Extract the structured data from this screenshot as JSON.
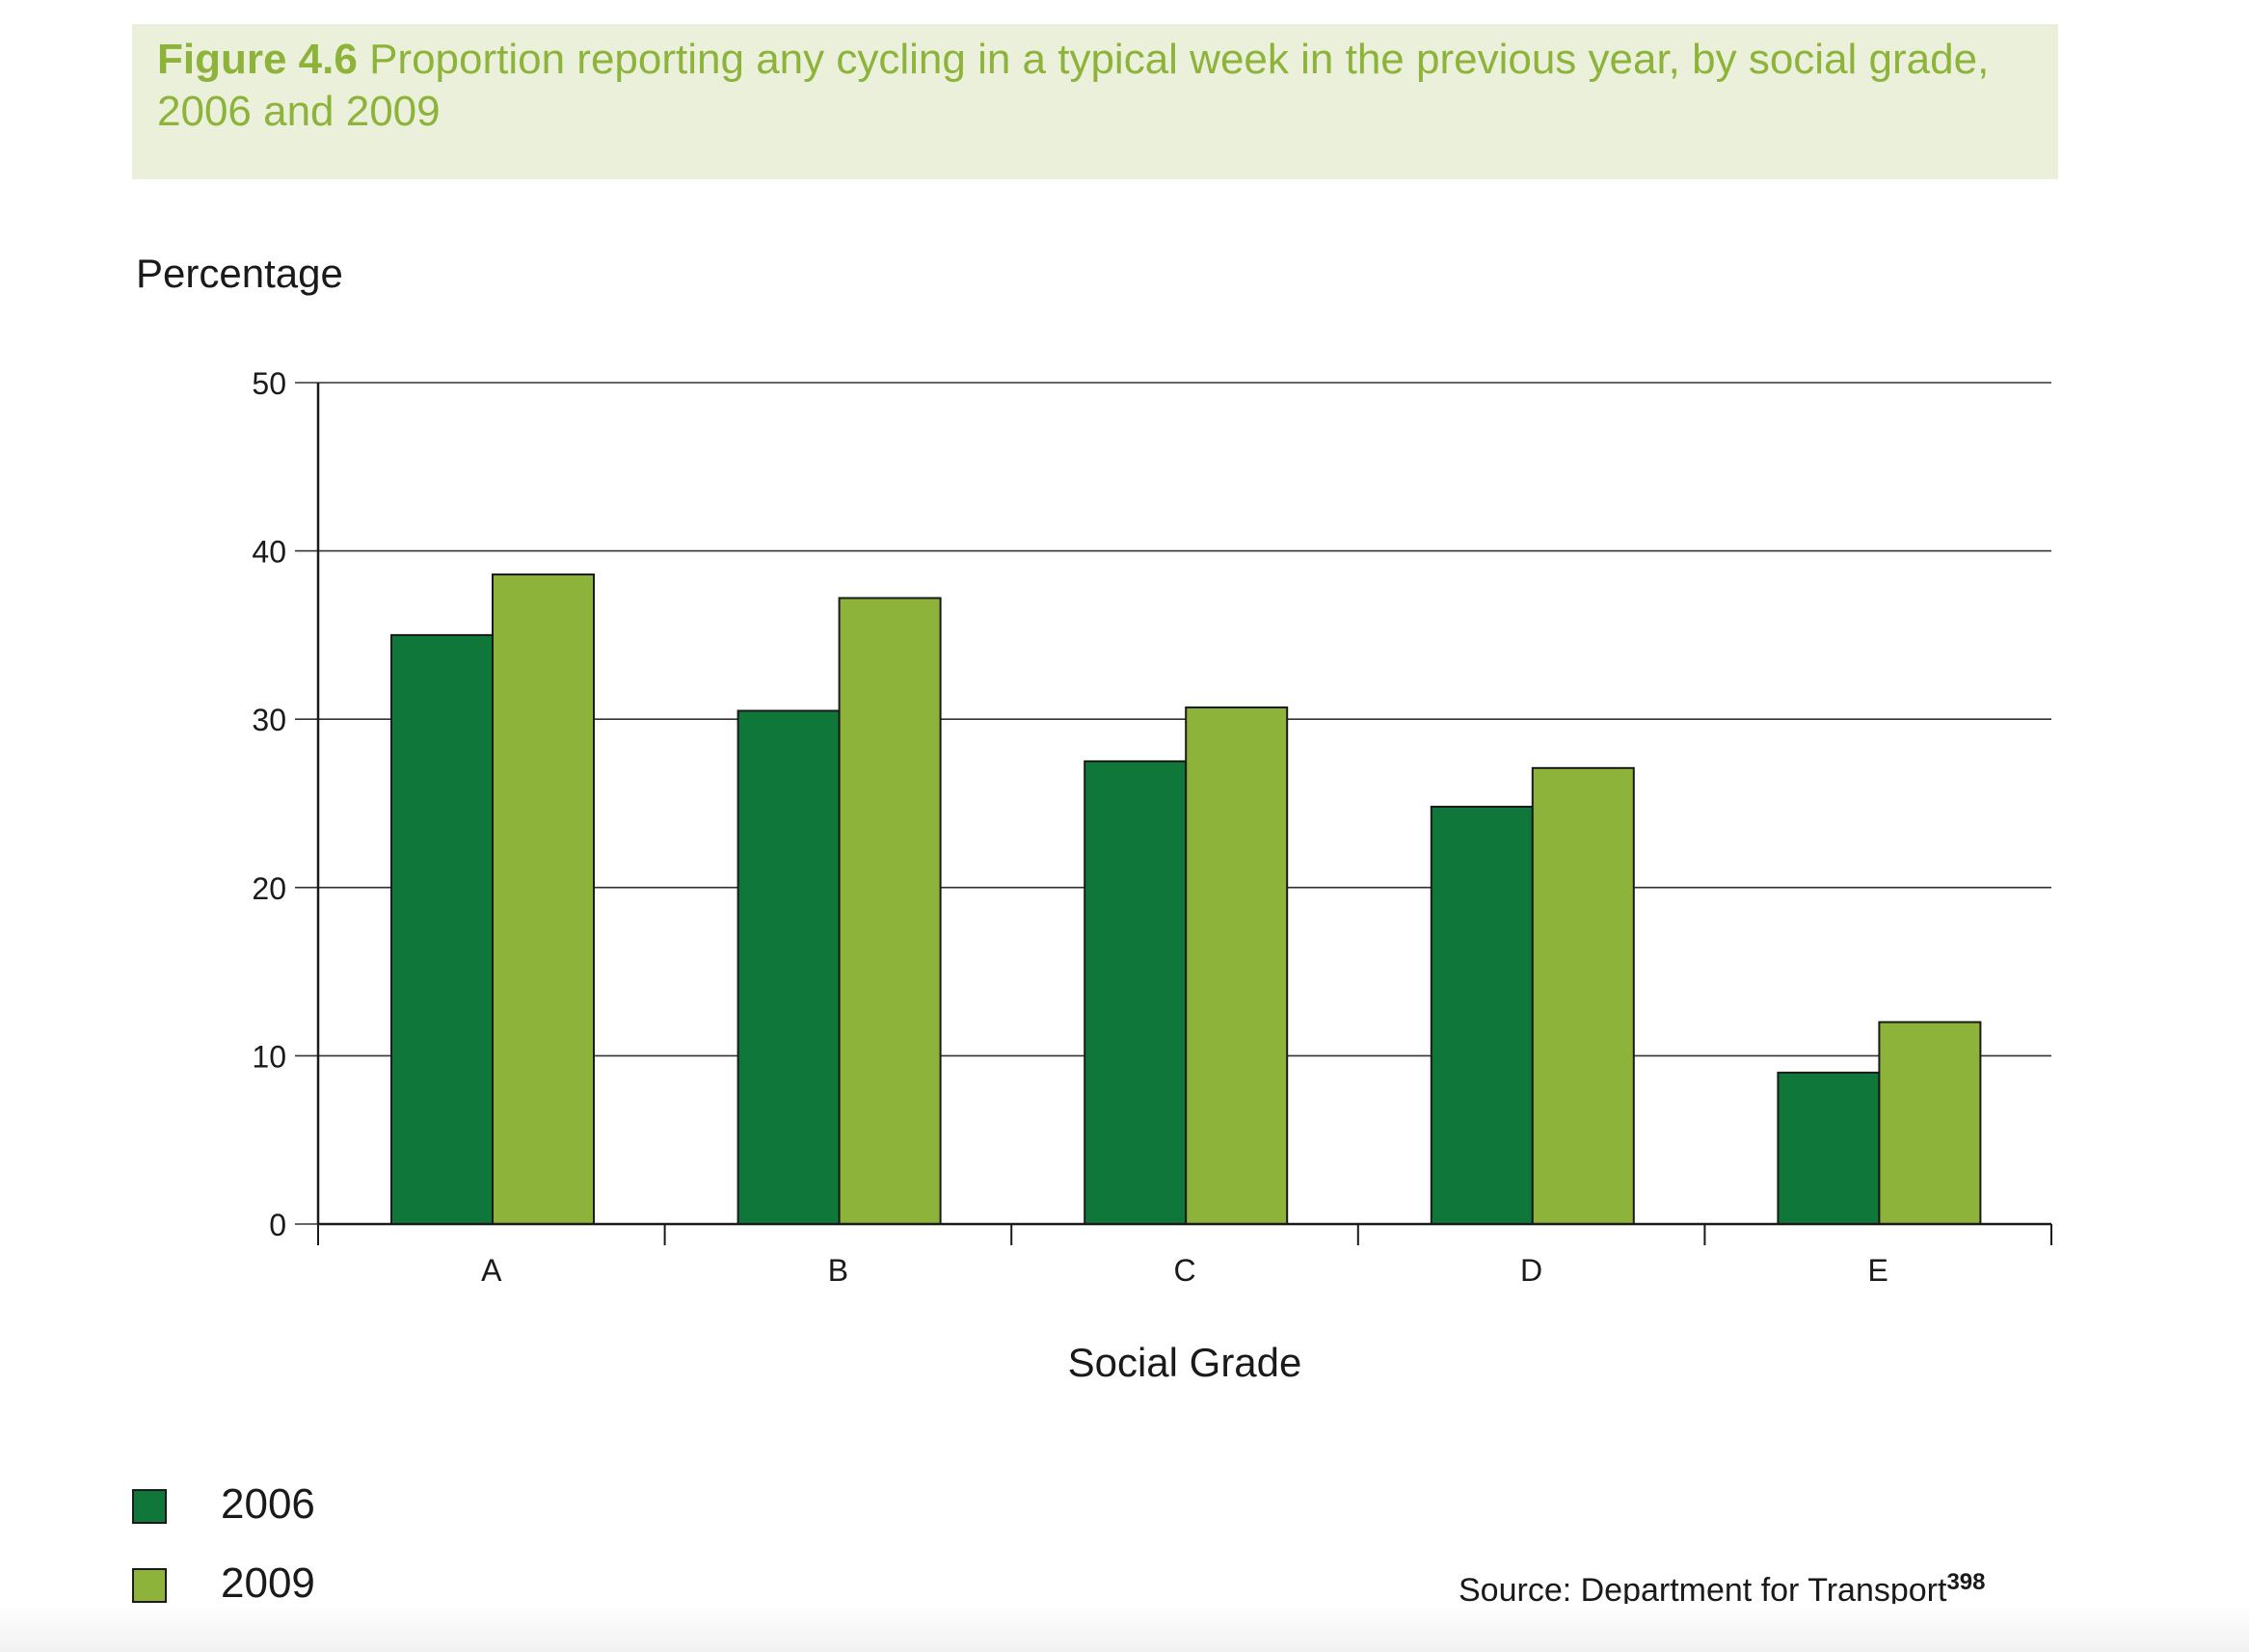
{
  "figure": {
    "label": "Figure 4.6",
    "caption": "Proportion reporting any cycling in a typical week in the previous year, by social grade, 2006 and 2009"
  },
  "source": {
    "text": "Source: Department for Transport",
    "footnote": "398"
  },
  "colors": {
    "series_2006": "#10773a",
    "series_2009": "#8db33a",
    "title_text": "#8db33a",
    "title_bg": "#eaf0d9"
  },
  "chart_data": {
    "type": "bar",
    "title": "Proportion reporting any cycling in a typical week in the previous year, by social grade, 2006 and 2009",
    "xlabel": "Social Grade",
    "ylabel": "Percentage",
    "categories": [
      "A",
      "B",
      "C",
      "D",
      "E"
    ],
    "series": [
      {
        "name": "2006",
        "values": [
          35,
          30.5,
          27.5,
          24.8,
          9
        ]
      },
      {
        "name": "2009",
        "values": [
          38.6,
          37.2,
          30.7,
          27.1,
          12
        ]
      }
    ],
    "ylim": [
      0,
      50
    ],
    "yticks": [
      0,
      10,
      20,
      30,
      40,
      50
    ],
    "grid": true,
    "legend_position": "bottom-left"
  }
}
